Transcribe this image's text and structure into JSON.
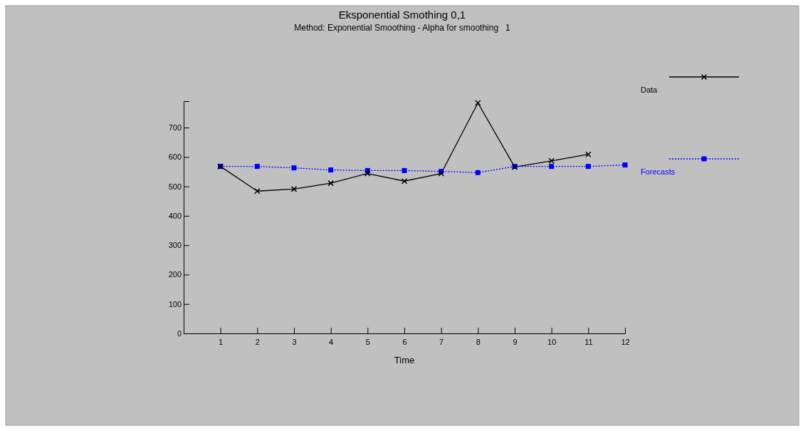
{
  "chart_data": {
    "type": "line",
    "title": "Eksponential Smothing 0,1",
    "subtitle": "Method: Exponential Smoothing - Alpha for smoothing   1",
    "xlabel": "Time",
    "x": [
      1,
      2,
      3,
      4,
      5,
      6,
      7,
      8,
      9,
      10,
      11,
      12
    ],
    "series": [
      {
        "name": "Data",
        "color": "#000000",
        "marker": "cross",
        "line_style": "solid",
        "values": [
          568,
          484,
          491,
          511,
          544,
          518,
          544,
          784,
          566,
          587,
          609,
          null
        ]
      },
      {
        "name": "Forecasts",
        "color": "#0000ff",
        "marker": "square",
        "line_style": "dotted",
        "values": [
          568,
          568,
          563,
          556,
          554,
          554,
          551,
          547,
          568,
          568,
          568,
          573
        ]
      }
    ],
    "xlim": [
      0,
      12
    ],
    "xticks": [
      1,
      2,
      3,
      4,
      5,
      6,
      7,
      8,
      9,
      10,
      11,
      12
    ],
    "ylim": [
      0,
      790
    ],
    "yticks": [
      0,
      100,
      200,
      300,
      400,
      500,
      600,
      700
    ],
    "grid": false,
    "legend": "right"
  }
}
